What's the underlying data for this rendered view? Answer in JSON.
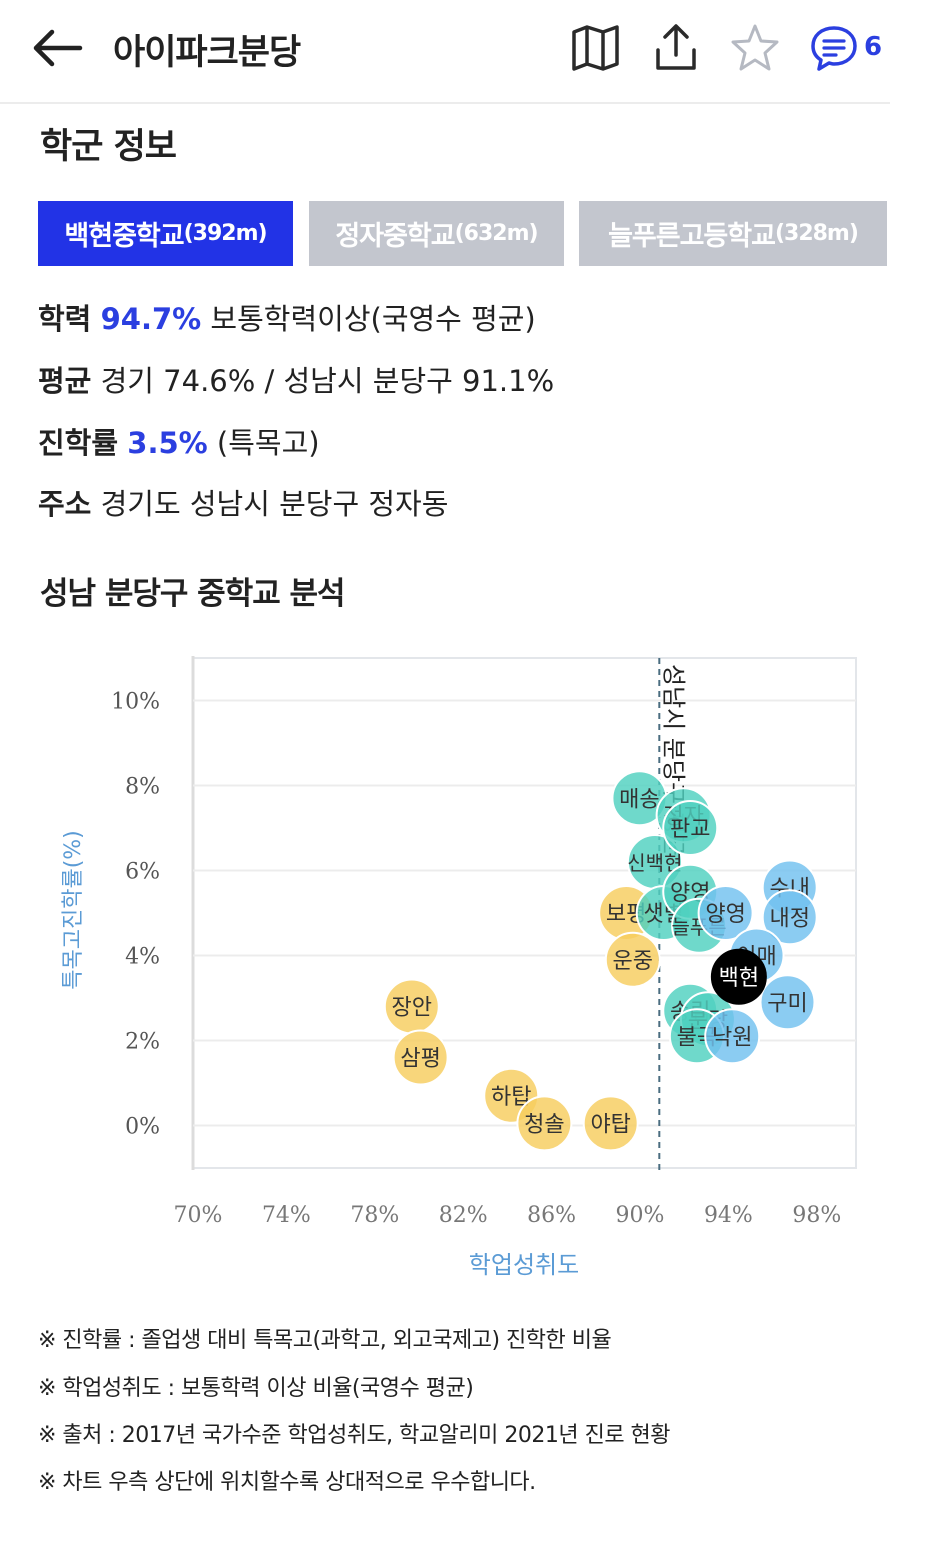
{
  "header": {
    "title": "아이파크분당",
    "comment_count": "6",
    "icons": [
      "back-arrow-icon",
      "map-icon",
      "share-icon",
      "star-icon",
      "chat-icon"
    ]
  },
  "school_section": {
    "title": "학군 정보",
    "tabs": [
      {
        "name": "백현중학교",
        "dist": "(392m)",
        "active": true
      },
      {
        "name": "정자중학교",
        "dist": "(632m)",
        "active": false
      },
      {
        "name": "늘푸른고등학교",
        "dist": "(328m)",
        "active": false
      }
    ],
    "info": {
      "academic_label": "학력",
      "academic_value": "94.7%",
      "academic_desc": "보통학력이상(국영수 평균)",
      "average_label": "평균",
      "average_value": "경기 74.6% / 성남시 분당구 91.1%",
      "advance_label": "진학률",
      "advance_value": "3.5%",
      "advance_desc": "(특목고)",
      "address_label": "주소",
      "address_value": "경기도 성남시 분당구 정자동"
    }
  },
  "analysis": {
    "title": "성남 분당구 중학교 분석"
  },
  "chart_data": {
    "type": "scatter",
    "xlabel": "학업성취도",
    "ylabel": "특목고진학률(%)",
    "xlim": [
      70,
      100
    ],
    "ylim": [
      -1,
      11
    ],
    "xticks": [
      "70%",
      "74%",
      "78%",
      "82%",
      "86%",
      "90%",
      "94%",
      "98%"
    ],
    "yticks": [
      "0%",
      "2%",
      "4%",
      "6%",
      "8%",
      "10%"
    ],
    "reference_line": {
      "x": 91.1,
      "label": "성남시 분당구 평균"
    },
    "colors": {
      "below": "#f7cd5e",
      "near": "#4fd1bf",
      "above": "#72c1ef",
      "selected": "#000000"
    },
    "points": [
      {
        "name": "장안",
        "x": 79.9,
        "y": 2.8,
        "group": "below"
      },
      {
        "name": "삼평",
        "x": 80.3,
        "y": 1.6,
        "group": "below"
      },
      {
        "name": "하탑",
        "x": 84.4,
        "y": 0.7,
        "group": "below"
      },
      {
        "name": "청솔",
        "x": 85.9,
        "y": 0.05,
        "group": "below"
      },
      {
        "name": "야탑",
        "x": 88.9,
        "y": 0.05,
        "group": "below"
      },
      {
        "name": "보평",
        "x": 89.6,
        "y": 5.0,
        "group": "below"
      },
      {
        "name": "운중",
        "x": 89.9,
        "y": 3.9,
        "group": "below"
      },
      {
        "name": "매송",
        "x": 90.2,
        "y": 7.7,
        "group": "near"
      },
      {
        "name": "신백현",
        "x": 90.9,
        "y": 6.2,
        "group": "near"
      },
      {
        "name": "샛별",
        "x": 91.3,
        "y": 5.0,
        "group": "near"
      },
      {
        "name": "정자",
        "x": 92.2,
        "y": 7.3,
        "group": "near"
      },
      {
        "name": "판교",
        "x": 92.5,
        "y": 7.0,
        "group": "near"
      },
      {
        "name": "양영",
        "x": 92.5,
        "y": 5.5,
        "group": "near"
      },
      {
        "name": "늘푸른",
        "x": 92.9,
        "y": 4.7,
        "group": "near"
      },
      {
        "name": "송림",
        "x": 92.5,
        "y": 2.7,
        "group": "near"
      },
      {
        "name": "분당",
        "x": 93.3,
        "y": 2.5,
        "group": "near"
      },
      {
        "name": "불곡",
        "x": 92.8,
        "y": 2.1,
        "group": "near"
      },
      {
        "name": "낙원",
        "x": 94.4,
        "y": 2.1,
        "group": "above"
      },
      {
        "name": "양영",
        "x": 94.1,
        "y": 5.0,
        "group": "above"
      },
      {
        "name": "수내",
        "x": 97.0,
        "y": 5.6,
        "group": "above"
      },
      {
        "name": "내정",
        "x": 97.0,
        "y": 4.9,
        "group": "above"
      },
      {
        "name": "이매",
        "x": 95.5,
        "y": 4.0,
        "group": "above"
      },
      {
        "name": "구미",
        "x": 96.9,
        "y": 2.9,
        "group": "above"
      },
      {
        "name": "백현",
        "x": 94.7,
        "y": 3.5,
        "group": "selected"
      }
    ]
  },
  "notes": [
    "※ 진학률 : 졸업생 대비 특목고(과학고, 외고국제고) 진학한 비율",
    "※ 학업성취도 : 보통학력 이상 비율(국영수 평균)",
    "※ 출처 : 2017년 국가수준 학업성취도, 학교알리미 2021년 진로 현황",
    "※ 차트 우측 상단에 위치할수록 상대적으로 우수합니다."
  ]
}
